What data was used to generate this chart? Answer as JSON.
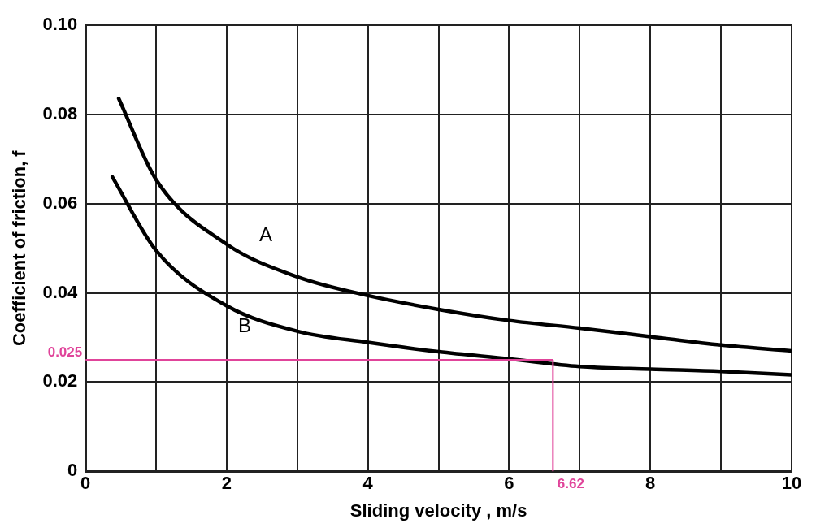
{
  "chart_data": {
    "type": "line",
    "xlabel": "Sliding velocity , m/s",
    "ylabel": "Coefficient of friction, f",
    "xlim": [
      0,
      10
    ],
    "ylim": [
      0,
      0.1
    ],
    "xticks": [
      0,
      {
        "value": 1,
        "label": null
      },
      2,
      {
        "value": 3,
        "label": null
      },
      4,
      {
        "value": 5,
        "label": null
      },
      6,
      {
        "value": 7,
        "label": null
      },
      8,
      {
        "value": 9,
        "label": null
      },
      10
    ],
    "yticks": [
      0,
      0.02,
      0.04,
      0.06,
      0.08,
      {
        "value": 0.1,
        "label": "0.10"
      }
    ],
    "grid": true,
    "legend": false,
    "marker": "none",
    "line_style": "solid",
    "series": [
      {
        "name": "A",
        "color": "#000000",
        "x": [
          0.47,
          1,
          2,
          3,
          4,
          5,
          6,
          7,
          8,
          9,
          10
        ],
        "values": [
          0.0836,
          0.0654,
          0.0509,
          0.0436,
          0.0394,
          0.0363,
          0.0338,
          0.0321,
          0.0302,
          0.0283,
          0.027
        ]
      },
      {
        "name": "B",
        "color": "#000000",
        "x": [
          0.38,
          1,
          2,
          3,
          4,
          5,
          6,
          7,
          8,
          9,
          10
        ],
        "values": [
          0.066,
          0.0495,
          0.0371,
          0.0314,
          0.0289,
          0.0268,
          0.0252,
          0.0235,
          0.0229,
          0.0224,
          0.0216
        ]
      }
    ],
    "ref_lines": [
      {
        "axis": "y",
        "value": 0.025,
        "label": "0.025",
        "color": "#e0449a"
      },
      {
        "axis": "x",
        "value": 6.62,
        "label": "6.62",
        "color": "#e0449a"
      }
    ]
  }
}
